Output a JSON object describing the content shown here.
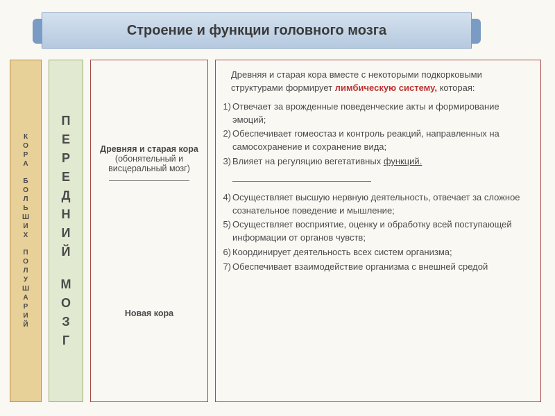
{
  "title": "Строение и функции головного мозга",
  "col1": {
    "word1": "КОРА",
    "word2": "БОЛЬШИХ",
    "word3": "ПОЛУШАРИЙ"
  },
  "col2": {
    "word1": "ПЕРЕДНИЙ",
    "word2": "МОЗГ"
  },
  "col3": {
    "block1_bold": "Древняя и старая кора",
    "block1_sub": "(обонятельный и висцеральный мозг)",
    "block2": "Новая кора"
  },
  "col4": {
    "intro_pre": "Древняя и старая кора вместе с некоторыми подкорковыми структурами формирует ",
    "intro_hl": "лимбическую систему,",
    "intro_post": " которая:",
    "item1": "Отвечает за врожденные поведенческие акты и формирование эмоций;",
    "item2": "Обеспечивает гомеостаз и контроль реакций, направленных на самосохранение и сохранение вида;",
    "item3a": "Влияет на регуляцию вегетативных ",
    "item3b": "функций.",
    "item4": "Осуществляет высшую нервную деятельность, отвечает за сложное сознательное поведение и мышление;",
    "item5": "Осуществляет восприятие, оценку и обработку всей поступающей информации от органов чувств;",
    "item6": "Координирует деятельность всех систем организма;",
    "item7": "Обеспечивает взаимодействие организма с внешней средой"
  },
  "nums": {
    "n1": "1)",
    "n2": "2)",
    "n3": "3)",
    "n4": "4)",
    "n5": "5)",
    "n6": "6)",
    "n7": "7)"
  }
}
